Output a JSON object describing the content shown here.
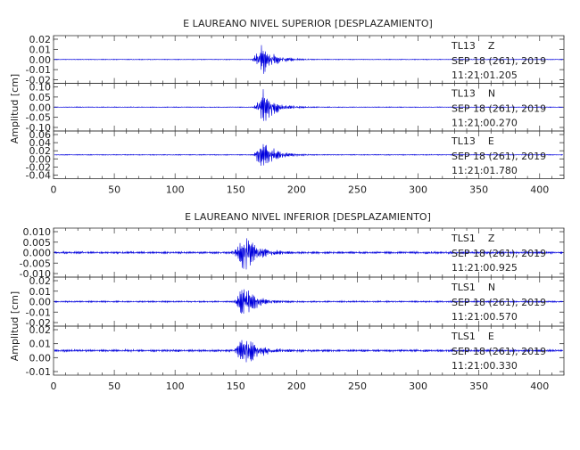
{
  "chart_data": [
    {
      "type": "line",
      "title": "E LAUREANO NIVEL SUPERIOR [DESPLAZAMIENTO]",
      "ylabel": "Amplitud [cm]",
      "xlim": [
        0,
        420
      ],
      "xticks": [
        "0",
        "50",
        "100",
        "150",
        "200",
        "250",
        "300",
        "350",
        "400"
      ],
      "grid": false,
      "series_color": "#0000dd",
      "panels": [
        {
          "station": "TL13",
          "component": "Z",
          "date": "SEP 18 (261), 2019",
          "time": "11:21:01.205",
          "yticks": [
            "0.02",
            "0.01",
            "0.00",
            "-0.01",
            "-0.02"
          ],
          "peak_amplitude": 0.027,
          "onset": 163,
          "peak_time": 171,
          "noise": 0.0005
        },
        {
          "station": "TL13",
          "component": "N",
          "date": "SEP 18 (261), 2019",
          "time": "11:21:00.270",
          "yticks": [
            "0.10",
            "0.05",
            "0.00",
            "-0.05",
            "-0.10"
          ],
          "peak_amplitude": 0.105,
          "onset": 164,
          "peak_time": 172,
          "noise": 0.002
        },
        {
          "station": "TL13",
          "component": "E",
          "date": "SEP 18 (261), 2019",
          "time": "11:21:01.780",
          "yticks": [
            "0.06",
            "0.04",
            "0.02",
            "0.00",
            "-0.02",
            "-0.04"
          ],
          "peak_amplitude": 0.045,
          "onset": 164,
          "peak_time": 171,
          "noise": 0.001
        }
      ]
    },
    {
      "type": "line",
      "title": "E LAUREANO NIVEL INFERIOR [DESPLAZAMIENTO]",
      "ylabel": "Amplitud [cm]",
      "xlim": [
        0,
        420
      ],
      "xticks": [
        "0",
        "50",
        "100",
        "150",
        "200",
        "250",
        "300",
        "350",
        "400"
      ],
      "grid": false,
      "series_color": "#0000dd",
      "panels": [
        {
          "station": "TLS1",
          "component": "Z",
          "date": "SEP 18 (261), 2019",
          "time": "11:21:00.925",
          "yticks": [
            "0.010",
            "0.005",
            "0.000",
            "-0.005",
            "-0.010"
          ],
          "peak_amplitude": 0.0105,
          "onset": 145,
          "peak_time": 158,
          "noise": 0.0006
        },
        {
          "station": "TLS1",
          "component": "N",
          "date": "SEP 18 (261), 2019",
          "time": "11:21:00.570",
          "yticks": [
            "0.02",
            "0.01",
            "0.00",
            "-0.01",
            "-0.02"
          ],
          "peak_amplitude": 0.02,
          "onset": 147,
          "peak_time": 157,
          "noise": 0.0008
        },
        {
          "station": "TLS1",
          "component": "E",
          "date": "SEP 18 (261), 2019",
          "time": "11:21:00.330",
          "yticks": [
            "0.02",
            "0.01",
            "0.00",
            "-0.01"
          ],
          "peak_amplitude": 0.014,
          "onset": 147,
          "peak_time": 157,
          "noise": 0.0008
        }
      ]
    }
  ]
}
